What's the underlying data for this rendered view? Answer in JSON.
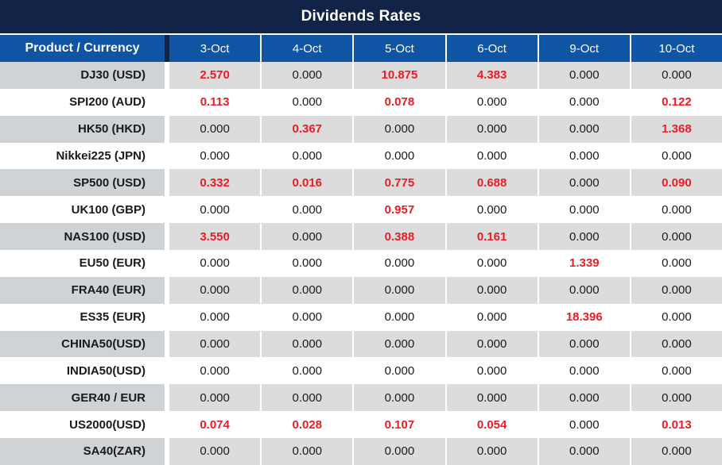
{
  "title": "Dividends Rates",
  "header": {
    "corner": "Product / Currency",
    "dates": [
      "3-Oct",
      "4-Oct",
      "5-Oct",
      "6-Oct",
      "9-Oct",
      "10-Oct"
    ]
  },
  "rows": [
    {
      "product": "DJ30 (USD)",
      "values": [
        "2.570",
        "0.000",
        "10.875",
        "4.383",
        "0.000",
        "0.000"
      ]
    },
    {
      "product": "SPI200 (AUD)",
      "values": [
        "0.113",
        "0.000",
        "0.078",
        "0.000",
        "0.000",
        "0.122"
      ]
    },
    {
      "product": "HK50 (HKD)",
      "values": [
        "0.000",
        "0.367",
        "0.000",
        "0.000",
        "0.000",
        "1.368"
      ]
    },
    {
      "product": "Nikkei225 (JPN)",
      "values": [
        "0.000",
        "0.000",
        "0.000",
        "0.000",
        "0.000",
        "0.000"
      ]
    },
    {
      "product": "SP500 (USD)",
      "values": [
        "0.332",
        "0.016",
        "0.775",
        "0.688",
        "0.000",
        "0.090"
      ]
    },
    {
      "product": "UK100 (GBP)",
      "values": [
        "0.000",
        "0.000",
        "0.957",
        "0.000",
        "0.000",
        "0.000"
      ]
    },
    {
      "product": "NAS100 (USD)",
      "values": [
        "3.550",
        "0.000",
        "0.388",
        "0.161",
        "0.000",
        "0.000"
      ]
    },
    {
      "product": "EU50 (EUR)",
      "values": [
        "0.000",
        "0.000",
        "0.000",
        "0.000",
        "1.339",
        "0.000"
      ]
    },
    {
      "product": "FRA40 (EUR)",
      "values": [
        "0.000",
        "0.000",
        "0.000",
        "0.000",
        "0.000",
        "0.000"
      ]
    },
    {
      "product": "ES35 (EUR)",
      "values": [
        "0.000",
        "0.000",
        "0.000",
        "0.000",
        "18.396",
        "0.000"
      ]
    },
    {
      "product": "CHINA50(USD)",
      "values": [
        "0.000",
        "0.000",
        "0.000",
        "0.000",
        "0.000",
        "0.000"
      ]
    },
    {
      "product": "INDIA50(USD)",
      "values": [
        "0.000",
        "0.000",
        "0.000",
        "0.000",
        "0.000",
        "0.000"
      ]
    },
    {
      "product": "GER40 / EUR",
      "values": [
        "0.000",
        "0.000",
        "0.000",
        "0.000",
        "0.000",
        "0.000"
      ]
    },
    {
      "product": "US2000(USD)",
      "values": [
        "0.074",
        "0.028",
        "0.107",
        "0.054",
        "0.000",
        "0.013"
      ]
    },
    {
      "product": "SA40(ZAR)",
      "values": [
        "0.000",
        "0.000",
        "0.000",
        "0.000",
        "0.000",
        "0.000"
      ]
    }
  ],
  "colors": {
    "title_bar": "#112347",
    "header_cell": "#0f55a4",
    "row_gray": "#dcdcdc",
    "label_gray": "#cfd3d6",
    "value_red": "#ed1c24",
    "value_black": "#1a1a1a"
  }
}
